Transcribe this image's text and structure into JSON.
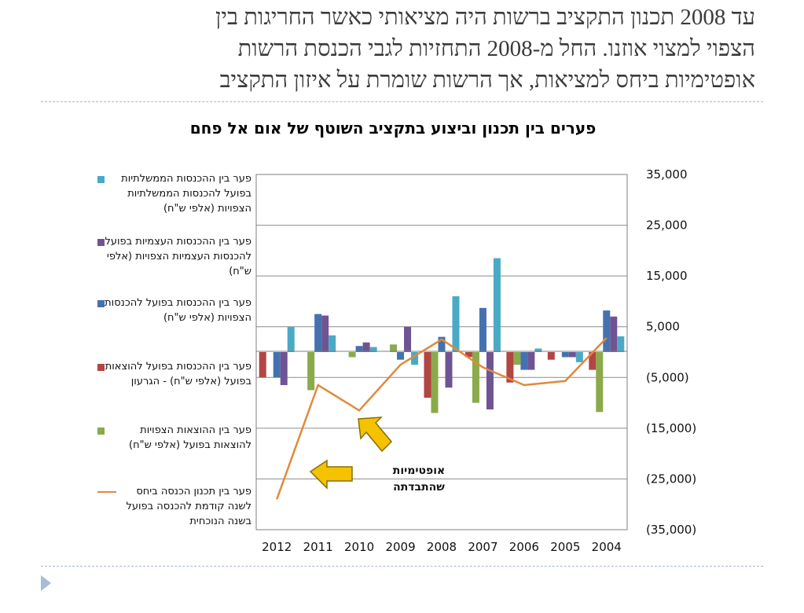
{
  "heading": {
    "lines": [
      "עד 2008 תכנון התקציב ברשות היה מציאותי כאשר החריגות בין",
      "הצפוי למצוי אוזנו. החל מ-2008 התחזיות לגבי הכנסת הרשות",
      "אופטימיות ביחס למציאות, אך הרשות שומרת על איזון התקציב"
    ]
  },
  "chart_data": {
    "type": "bar",
    "title": "פערים בין תכנון וביצוע בתקציב השוטף של אום אל פחם",
    "categories": [
      "2012",
      "2011",
      "2010",
      "2009",
      "2008",
      "2007",
      "2006",
      "2005",
      "2004"
    ],
    "y_axis": {
      "position": "right",
      "min": -35000,
      "max": 35000,
      "ticks": [
        35000,
        25000,
        15000,
        5000,
        -5000,
        -15000,
        -25000,
        -35000
      ],
      "tick_labels": [
        "35,000",
        "25,000",
        "15,000",
        "5,000",
        "(5,000)",
        "(15,000)",
        "(25,000)",
        "(35,000)"
      ]
    },
    "grid": "horizontal",
    "legend_position": "left",
    "series": [
      {
        "name": "פער בין ההכנסות בפועל להוצאות בפועל (אלפי ש\"ח) - הגרעון",
        "kind": "bar",
        "color": "#b34542",
        "values": [
          -5000,
          0,
          0,
          0,
          -9000,
          -1000,
          -6000,
          -1500,
          -3500
        ]
      },
      {
        "name": "פער בין ההוצאות הצפויות להוצאות בפועל (אלפי ש\"ח)",
        "kind": "bar",
        "color": "#8aaa4b",
        "values": [
          0,
          -7500,
          -1000,
          1500,
          -12000,
          -10000,
          -2500,
          0,
          -11800
        ]
      },
      {
        "name": "פער בין ההכנסות בפועל להכנסות הצפויות (אלפי ש\"ח)",
        "kind": "bar",
        "color": "#4472b0",
        "values": [
          -5000,
          7500,
          1200,
          -1500,
          3000,
          8700,
          -3500,
          -1000,
          8200
        ]
      },
      {
        "name": "פער בין ההכנסות העצמיות בפועל להכנסות העצמיות הצפויות (אלפי ש\"ח)",
        "kind": "bar",
        "color": "#6f5494",
        "values": [
          -6500,
          7200,
          1900,
          5000,
          -7000,
          -11300,
          -3500,
          -1000,
          7000
        ]
      },
      {
        "name": "פער בין ההכנסות הממשלתיות בפועל להכנסות הממשלתיות הצפויות (אלפי ש\"ח)",
        "kind": "bar",
        "color": "#4aaac6",
        "values": [
          5000,
          3300,
          1000,
          -2500,
          11000,
          18500,
          700,
          -2000,
          3100
        ]
      },
      {
        "name": "פער בין תכנון הכנסה ביחס לשנה קודמת להכנסה בפועל בשנה הנוכחית",
        "kind": "line",
        "color": "#e08a3c",
        "values": [
          -29000,
          -6500,
          -11500,
          -2500,
          2500,
          -3000,
          -6500,
          -5700,
          2800
        ]
      }
    ]
  },
  "legend": [
    {
      "label": "פער בין ההכנסות הממשלתיות בפועל להכנסות הממשלתיות הצפויות (אלפי ש\"ח)",
      "color": "#4aaac6",
      "kind": "box"
    },
    {
      "label": "פער בין ההכנסות העצמיות בפועל להכנסות העצמיות הצפויות (אלפי ש\"ח)",
      "color": "#6f5494",
      "kind": "box"
    },
    {
      "label": "פער בין ההכנסות בפועל להכנסות הצפויות (אלפי ש\"ח)",
      "color": "#4472b0",
      "kind": "box"
    },
    {
      "label": "פער בין ההכנסות בפועל להוצאות בפועל (אלפי ש\"ח) - הגרעון",
      "color": "#b34542",
      "kind": "box"
    },
    {
      "label": "פער בין ההוצאות הצפויות להוצאות בפועל (אלפי ש\"ח)",
      "color": "#8aaa4b",
      "kind": "box"
    },
    {
      "label": "פער בין תכנון הכנסה ביחס לשנה קודמת להכנסה בפועל בשנה הנוכחית",
      "color": "#e08a3c",
      "kind": "line"
    }
  ],
  "callout": {
    "text_line1": "אופטימיות",
    "text_line2": "שהתבדתה",
    "arrow_color": "#f5c200"
  }
}
